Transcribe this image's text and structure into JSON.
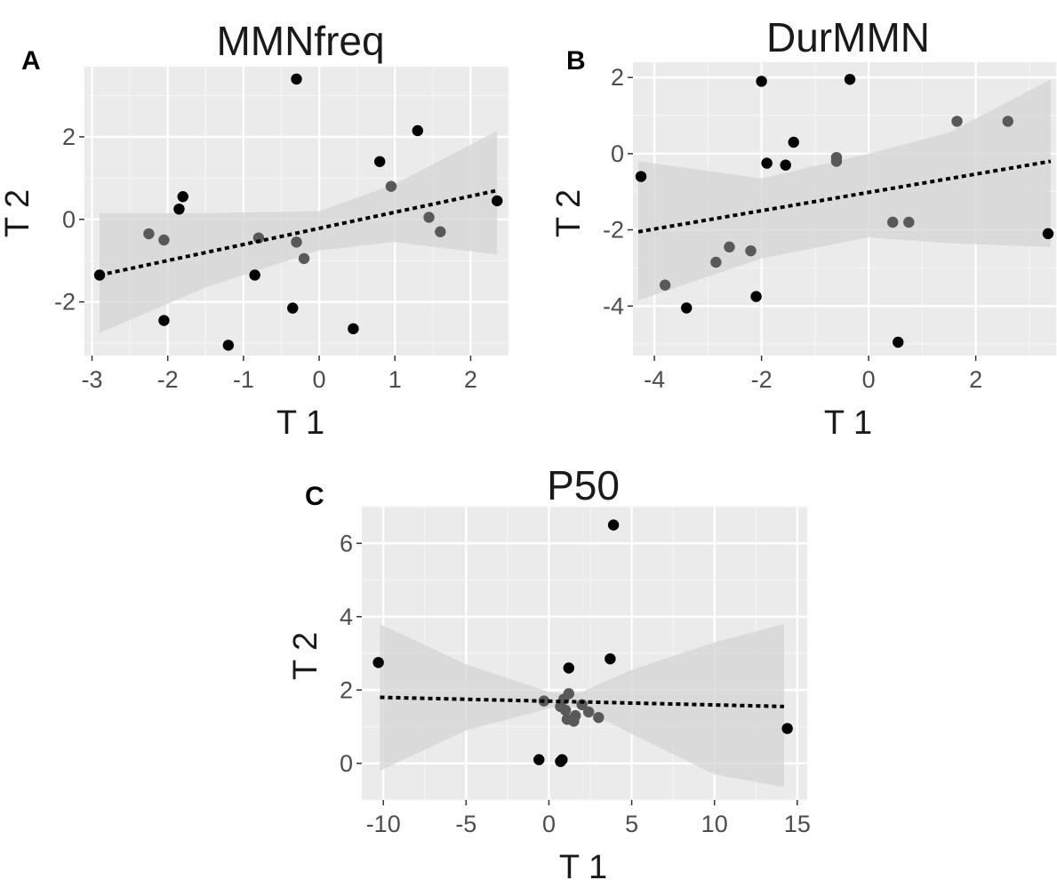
{
  "colors": {
    "panel_background": "#ebebeb",
    "grid_major": "#ffffff",
    "grid_minor": "#f5f5f5",
    "confidence_band": "#d4d4d4",
    "point_dark": "#000000",
    "point_gray": "#595959",
    "fit_line": "#000000"
  },
  "chart_data": [
    {
      "type": "scatter",
      "panel_label": "A",
      "title": "MMNfreq",
      "xlabel": "T 1",
      "ylabel": "T 2",
      "xlim": [
        -3.1,
        2.5
      ],
      "ylim": [
        -3.3,
        3.7
      ],
      "xticks": [
        -3,
        -2,
        -1,
        0,
        1,
        2
      ],
      "yticks": [
        -2,
        0,
        2
      ],
      "xtick_labels": [
        "-3",
        "-2",
        "-1",
        "0",
        "1",
        "2"
      ],
      "ytick_labels": [
        "-2",
        "0",
        "2"
      ],
      "grid": true,
      "fit_line": {
        "style": "dotted",
        "x": [
          -2.9,
          2.35
        ],
        "y": [
          -1.35,
          0.7
        ]
      },
      "confidence_band": {
        "x": [
          -2.9,
          -1.5,
          0,
          1.0,
          2.35
        ],
        "lower": [
          -2.75,
          -1.65,
          -0.75,
          -0.55,
          -0.85
        ],
        "upper": [
          0.15,
          0.15,
          0.2,
          0.85,
          2.15
        ]
      },
      "points": [
        {
          "x": -2.9,
          "y": -1.35,
          "shade": "dark"
        },
        {
          "x": -2.25,
          "y": -0.35,
          "shade": "gray"
        },
        {
          "x": -2.05,
          "y": -0.5,
          "shade": "gray"
        },
        {
          "x": -2.05,
          "y": -2.45,
          "shade": "dark"
        },
        {
          "x": -1.85,
          "y": 0.25,
          "shade": "dark"
        },
        {
          "x": -1.8,
          "y": 0.55,
          "shade": "dark"
        },
        {
          "x": -1.2,
          "y": -3.05,
          "shade": "dark"
        },
        {
          "x": -0.85,
          "y": -1.35,
          "shade": "dark"
        },
        {
          "x": -0.8,
          "y": -0.45,
          "shade": "gray"
        },
        {
          "x": -0.35,
          "y": -2.15,
          "shade": "dark"
        },
        {
          "x": -0.3,
          "y": 3.4,
          "shade": "dark"
        },
        {
          "x": -0.3,
          "y": -0.55,
          "shade": "gray"
        },
        {
          "x": -0.2,
          "y": -0.95,
          "shade": "gray"
        },
        {
          "x": 0.45,
          "y": -2.65,
          "shade": "dark"
        },
        {
          "x": 0.8,
          "y": 1.4,
          "shade": "dark"
        },
        {
          "x": 0.95,
          "y": 0.8,
          "shade": "gray"
        },
        {
          "x": 1.3,
          "y": 2.15,
          "shade": "dark"
        },
        {
          "x": 1.45,
          "y": 0.05,
          "shade": "gray"
        },
        {
          "x": 1.6,
          "y": -0.3,
          "shade": "gray"
        },
        {
          "x": 2.35,
          "y": 0.45,
          "shade": "dark"
        }
      ]
    },
    {
      "type": "scatter",
      "panel_label": "B",
      "title": "DurMMN",
      "xlabel": "T 1",
      "ylabel": "T 2",
      "xlim": [
        -4.4,
        3.5
      ],
      "ylim": [
        -5.3,
        2.4
      ],
      "xticks": [
        -4,
        -2,
        0,
        2
      ],
      "yticks": [
        -4,
        -2,
        0,
        2
      ],
      "xtick_labels": [
        "-4",
        "-2",
        "0",
        "2"
      ],
      "ytick_labels": [
        "-4",
        "-2",
        "0",
        "2"
      ],
      "grid": true,
      "fit_line": {
        "style": "dotted",
        "x": [
          -4.3,
          3.4
        ],
        "y": [
          -2.05,
          -0.2
        ]
      },
      "confidence_band": {
        "x": [
          -4.3,
          -2,
          0,
          1.5,
          3.4
        ],
        "lower": [
          -3.85,
          -2.75,
          -2.2,
          -2.35,
          -2.45
        ],
        "upper": [
          -0.2,
          -0.65,
          0,
          0.55,
          1.95
        ]
      },
      "points": [
        {
          "x": -4.25,
          "y": -0.6,
          "shade": "dark"
        },
        {
          "x": -3.8,
          "y": -3.45,
          "shade": "gray"
        },
        {
          "x": -3.4,
          "y": -4.05,
          "shade": "dark"
        },
        {
          "x": -2.85,
          "y": -2.85,
          "shade": "gray"
        },
        {
          "x": -2.6,
          "y": -2.45,
          "shade": "gray"
        },
        {
          "x": -2.2,
          "y": -2.55,
          "shade": "gray"
        },
        {
          "x": -2.1,
          "y": -3.75,
          "shade": "dark"
        },
        {
          "x": -2.0,
          "y": 1.9,
          "shade": "dark"
        },
        {
          "x": -1.9,
          "y": -0.25,
          "shade": "dark"
        },
        {
          "x": -1.55,
          "y": -0.3,
          "shade": "dark"
        },
        {
          "x": -1.4,
          "y": 0.3,
          "shade": "dark"
        },
        {
          "x": -0.6,
          "y": -0.2,
          "shade": "gray"
        },
        {
          "x": -0.6,
          "y": -0.1,
          "shade": "gray"
        },
        {
          "x": -0.35,
          "y": 1.95,
          "shade": "dark"
        },
        {
          "x": 0.45,
          "y": -1.8,
          "shade": "gray"
        },
        {
          "x": 0.55,
          "y": -4.95,
          "shade": "dark"
        },
        {
          "x": 0.75,
          "y": -1.8,
          "shade": "gray"
        },
        {
          "x": 1.65,
          "y": 0.85,
          "shade": "gray"
        },
        {
          "x": 2.6,
          "y": 0.85,
          "shade": "gray"
        },
        {
          "x": 3.35,
          "y": -2.1,
          "shade": "dark"
        }
      ]
    },
    {
      "type": "scatter",
      "panel_label": "C",
      "title": "P50",
      "xlabel": "T 1",
      "ylabel": "T 2",
      "xlim": [
        -11.3,
        15.6
      ],
      "ylim": [
        -1.0,
        7.0
      ],
      "xticks": [
        -10,
        -5,
        0,
        5,
        10,
        15
      ],
      "yticks": [
        0,
        2,
        4,
        6
      ],
      "xtick_labels": [
        "-10",
        "-5",
        "0",
        "5",
        "10",
        "15"
      ],
      "ytick_labels": [
        "0",
        "2",
        "4",
        "6"
      ],
      "grid": true,
      "fit_line": {
        "style": "dotted",
        "x": [
          -10.2,
          14.2
        ],
        "y": [
          1.8,
          1.55
        ]
      },
      "confidence_band": {
        "x": [
          -10.2,
          -5,
          0,
          1,
          2,
          5,
          10,
          14.2
        ],
        "lower": [
          -0.2,
          0.9,
          1.5,
          1.55,
          1.5,
          0.8,
          -0.3,
          -0.65
        ],
        "upper": [
          3.8,
          2.7,
          1.95,
          1.9,
          1.95,
          2.55,
          3.3,
          3.8
        ]
      },
      "points": [
        {
          "x": -10.3,
          "y": 2.75,
          "shade": "dark"
        },
        {
          "x": -0.6,
          "y": 0.1,
          "shade": "dark"
        },
        {
          "x": -0.3,
          "y": 1.7,
          "shade": "gray"
        },
        {
          "x": 0.7,
          "y": 0.05,
          "shade": "dark"
        },
        {
          "x": 0.8,
          "y": 0.1,
          "shade": "dark"
        },
        {
          "x": 0.7,
          "y": 1.55,
          "shade": "gray"
        },
        {
          "x": 0.9,
          "y": 1.75,
          "shade": "gray"
        },
        {
          "x": 1.0,
          "y": 1.45,
          "shade": "gray"
        },
        {
          "x": 1.1,
          "y": 1.2,
          "shade": "gray"
        },
        {
          "x": 1.2,
          "y": 2.6,
          "shade": "dark"
        },
        {
          "x": 1.2,
          "y": 1.9,
          "shade": "gray"
        },
        {
          "x": 1.5,
          "y": 1.15,
          "shade": "gray"
        },
        {
          "x": 1.6,
          "y": 1.3,
          "shade": "gray"
        },
        {
          "x": 2.0,
          "y": 1.6,
          "shade": "gray"
        },
        {
          "x": 2.4,
          "y": 1.4,
          "shade": "gray"
        },
        {
          "x": 3.0,
          "y": 1.25,
          "shade": "gray"
        },
        {
          "x": 3.7,
          "y": 2.85,
          "shade": "dark"
        },
        {
          "x": 3.9,
          "y": 6.5,
          "shade": "dark"
        },
        {
          "x": 14.4,
          "y": 0.95,
          "shade": "dark"
        }
      ]
    }
  ]
}
